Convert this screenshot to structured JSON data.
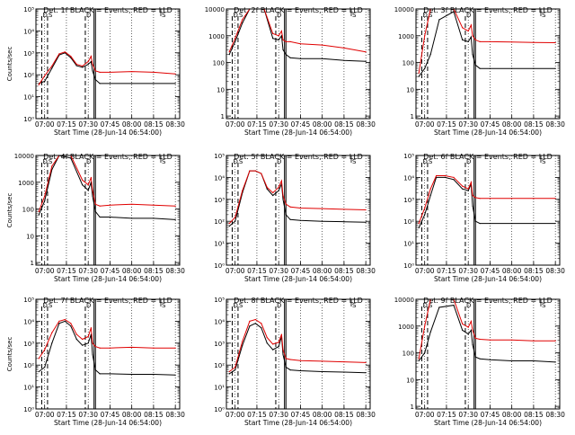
{
  "chart_data": [
    {
      "type": "line",
      "title": "Det. 1f BLACK = Events, RED = LLD",
      "xlabel": "Start Time (28-Jun-14 06:54:00)",
      "ylabel": "Counts/sec",
      "scale": "log",
      "ylim": [
        1,
        100000
      ],
      "yticks": [
        1,
        10,
        100,
        1000,
        10000,
        100000
      ],
      "ytick_labels": [
        "10⁰",
        "10¹",
        "10²",
        "10³",
        "10⁴",
        "10⁵"
      ],
      "xticks": [
        "07:00",
        "07:15",
        "07:30",
        "07:45",
        "08:00",
        "08:15",
        "08:30"
      ],
      "markers": [
        "D",
        "S",
        "D",
        "S"
      ],
      "series": [
        {
          "name": "Events",
          "color": "#000000",
          "x": [
            "06:56",
            "07:00",
            "07:05",
            "07:10",
            "07:14",
            "07:18",
            "07:22",
            "07:26",
            "07:30",
            "07:32",
            "07:33",
            "07:35",
            "07:38",
            "07:45",
            "08:00",
            "08:15",
            "08:30"
          ],
          "values": [
            40,
            50,
            200,
            800,
            1000,
            600,
            260,
            220,
            300,
            400,
            150,
            60,
            40,
            40,
            40,
            40,
            40
          ]
        },
        {
          "name": "LLD",
          "color": "#e00000",
          "x": [
            "06:56",
            "07:00",
            "07:05",
            "07:10",
            "07:14",
            "07:18",
            "07:22",
            "07:26",
            "07:30",
            "07:32",
            "07:33",
            "07:35",
            "07:38",
            "07:45",
            "08:00",
            "08:15",
            "08:30"
          ],
          "values": [
            35,
            90,
            250,
            900,
            1100,
            700,
            300,
            250,
            400,
            700,
            300,
            150,
            130,
            130,
            140,
            130,
            110
          ]
        }
      ]
    },
    {
      "type": "line",
      "title": "Det. 2f BLACK = Events, RED = LLD",
      "xlabel": "Start Time (28-Jun-14 06:54:00)",
      "ylabel": "",
      "scale": "log",
      "ylim": [
        0.8,
        10000
      ],
      "yticks": [
        1,
        10,
        100,
        1000,
        10000
      ],
      "ytick_labels": [
        "1",
        "10",
        "100",
        "1000",
        "10000"
      ],
      "xticks": [
        "07:00",
        "07:15",
        "07:30",
        "07:45",
        "08:00",
        "08:15",
        "08:30"
      ],
      "markers": [
        "D",
        "S",
        "D",
        "S"
      ],
      "series": [
        {
          "name": "Events",
          "color": "#000000",
          "x": [
            "06:56",
            "07:00",
            "07:05",
            "07:10",
            "07:20",
            "07:26",
            "07:30",
            "07:32",
            "07:33",
            "07:35",
            "07:38",
            "07:45",
            "08:00",
            "08:15",
            "08:30"
          ],
          "values": [
            200,
            600,
            3000,
            10000,
            10000,
            800,
            700,
            1000,
            300,
            200,
            150,
            140,
            140,
            120,
            110
          ]
        },
        {
          "name": "LLD",
          "color": "#e00000",
          "x": [
            "06:56",
            "07:00",
            "07:05",
            "07:10",
            "07:20",
            "07:26",
            "07:30",
            "07:32",
            "07:33",
            "07:35",
            "07:38",
            "07:45",
            "08:00",
            "08:15",
            "08:30"
          ],
          "values": [
            250,
            800,
            4000,
            10000,
            10000,
            1200,
            1000,
            1500,
            700,
            600,
            600,
            500,
            450,
            350,
            250
          ]
        }
      ]
    },
    {
      "type": "line",
      "title": "Det. 3f BLACK = Events, RED = LLD",
      "xlabel": "Start Time (28-Jun-14 06:54:00)",
      "ylabel": "",
      "scale": "log",
      "ylim": [
        0.8,
        10000
      ],
      "yticks": [
        1,
        10,
        100,
        1000,
        10000
      ],
      "ytick_labels": [
        "1",
        "10",
        "100",
        "1000",
        "10000"
      ],
      "xticks": [
        "07:00",
        "07:15",
        "07:30",
        "07:45",
        "08:00",
        "08:15",
        "08:30"
      ],
      "markers": [
        "D",
        "S",
        "D",
        "S"
      ],
      "series": [
        {
          "name": "Events",
          "color": "#000000",
          "x": [
            "06:56",
            "07:00",
            "07:04",
            "07:10",
            "07:20",
            "07:26",
            "07:30",
            "07:32",
            "07:33",
            "07:35",
            "07:38",
            "07:45",
            "08:00",
            "08:15",
            "08:30"
          ],
          "values": [
            30,
            60,
            200,
            4000,
            8000,
            700,
            600,
            900,
            200,
            80,
            60,
            60,
            60,
            60,
            60
          ]
        },
        {
          "name": "LLD",
          "color": "#e00000",
          "x": [
            "06:56",
            "07:00",
            "07:04",
            "07:10",
            "07:20",
            "07:26",
            "07:30",
            "07:32",
            "07:33",
            "07:35",
            "07:38",
            "07:45",
            "08:00",
            "08:15",
            "08:30"
          ],
          "values": [
            40,
            1000,
            10000,
            10000,
            10000,
            2000,
            1500,
            2500,
            1000,
            700,
            600,
            600,
            580,
            560,
            550
          ]
        }
      ]
    },
    {
      "type": "line",
      "title": "Det. 4f BLACK = Events, RED = LLD",
      "xlabel": "Start Time (28-Jun-14 06:54:00)",
      "ylabel": "Counts/sec",
      "scale": "log",
      "ylim": [
        0.8,
        10000
      ],
      "yticks": [
        1,
        10,
        100,
        1000,
        10000
      ],
      "ytick_labels": [
        "1",
        "10",
        "100",
        "1000",
        "10000"
      ],
      "xticks": [
        "07:00",
        "07:15",
        "07:30",
        "07:45",
        "08:00",
        "08:15",
        "08:30"
      ],
      "markers": [
        "D",
        "S",
        "D",
        "S"
      ],
      "series": [
        {
          "name": "Events",
          "color": "#000000",
          "x": [
            "06:56",
            "07:00",
            "07:05",
            "07:10",
            "07:18",
            "07:26",
            "07:30",
            "07:32",
            "07:33",
            "07:35",
            "07:38",
            "07:45",
            "08:00",
            "08:15",
            "08:30"
          ],
          "values": [
            60,
            200,
            3000,
            10000,
            8000,
            800,
            500,
            1000,
            300,
            80,
            50,
            50,
            45,
            45,
            40
          ]
        },
        {
          "name": "LLD",
          "color": "#e00000",
          "x": [
            "06:56",
            "07:00",
            "07:05",
            "07:10",
            "07:18",
            "07:26",
            "07:30",
            "07:32",
            "07:33",
            "07:35",
            "07:38",
            "07:45",
            "08:00",
            "08:15",
            "08:30"
          ],
          "values": [
            80,
            300,
            4000,
            10000,
            10000,
            1200,
            800,
            1500,
            500,
            150,
            130,
            140,
            150,
            140,
            130
          ]
        }
      ]
    },
    {
      "type": "line",
      "title": "Det. 5f BLACK = Events, RED = LLD",
      "xlabel": "Start Time (28-Jun-14 06:54:00)",
      "ylabel": "",
      "scale": "log",
      "ylim": [
        1,
        100000
      ],
      "yticks": [
        1,
        10,
        100,
        1000,
        10000,
        100000
      ],
      "ytick_labels": [
        "10⁰",
        "10¹",
        "10²",
        "10³",
        "10⁴",
        "10⁵"
      ],
      "xticks": [
        "07:00",
        "07:15",
        "07:30",
        "07:45",
        "08:00",
        "08:15",
        "08:30"
      ],
      "markers": [
        "D",
        "S",
        "D",
        "S"
      ],
      "series": [
        {
          "name": "Events",
          "color": "#000000",
          "x": [
            "06:56",
            "07:00",
            "07:05",
            "07:10",
            "07:14",
            "07:18",
            "07:22",
            "07:26",
            "07:30",
            "07:32",
            "07:33",
            "07:35",
            "07:38",
            "07:45",
            "08:00",
            "08:15",
            "08:30"
          ],
          "values": [
            60,
            100,
            2000,
            20000,
            20000,
            15000,
            3000,
            1500,
            2500,
            5000,
            1000,
            200,
            120,
            110,
            100,
            95,
            90
          ]
        },
        {
          "name": "LLD",
          "color": "#e00000",
          "x": [
            "06:56",
            "07:00",
            "07:05",
            "07:10",
            "07:14",
            "07:18",
            "07:22",
            "07:26",
            "07:30",
            "07:32",
            "07:33",
            "07:35",
            "07:38",
            "07:45",
            "08:00",
            "08:15",
            "08:30"
          ],
          "values": [
            80,
            150,
            2500,
            20000,
            20000,
            15000,
            3500,
            2000,
            3500,
            7000,
            1500,
            600,
            450,
            400,
            380,
            350,
            330
          ]
        }
      ]
    },
    {
      "type": "line",
      "title": "Det. 6f BLACK = Events, RED = LLD",
      "xlabel": "Start Time (28-Jun-14 06:54:00)",
      "ylabel": "",
      "scale": "log",
      "ylim": [
        1,
        100000
      ],
      "yticks": [
        1,
        10,
        100,
        1000,
        10000,
        100000
      ],
      "ytick_labels": [
        "10⁰",
        "10¹",
        "10²",
        "10³",
        "10⁴",
        "10⁵"
      ],
      "xticks": [
        "07:00",
        "07:15",
        "07:30",
        "07:45",
        "08:00",
        "08:15",
        "08:30"
      ],
      "markers": [
        "D",
        "S",
        "D",
        "S"
      ],
      "series": [
        {
          "name": "Events",
          "color": "#000000",
          "x": [
            "06:56",
            "07:00",
            "07:04",
            "07:08",
            "07:14",
            "07:20",
            "07:26",
            "07:30",
            "07:32",
            "07:33",
            "07:35",
            "07:38",
            "07:45",
            "08:00",
            "08:15",
            "08:30"
          ],
          "values": [
            50,
            200,
            1500,
            10000,
            10000,
            8000,
            3000,
            2500,
            5000,
            500,
            100,
            80,
            80,
            80,
            80,
            80
          ]
        },
        {
          "name": "LLD",
          "color": "#e00000",
          "x": [
            "06:56",
            "07:00",
            "07:04",
            "07:08",
            "07:14",
            "07:20",
            "07:26",
            "07:30",
            "07:32",
            "07:33",
            "07:35",
            "07:38",
            "07:45",
            "08:00",
            "08:15",
            "08:30"
          ],
          "values": [
            80,
            400,
            3000,
            12000,
            12000,
            10000,
            4000,
            3000,
            6000,
            1500,
            1200,
            1100,
            1100,
            1100,
            1100,
            1100
          ]
        }
      ]
    },
    {
      "type": "line",
      "title": "Det. 7f BLACK = Events, RED = LLD",
      "xlabel": "Start Time (28-Jun-14 06:54:00)",
      "ylabel": "Counts/sec",
      "scale": "log",
      "ylim": [
        1,
        100000
      ],
      "yticks": [
        1,
        10,
        100,
        1000,
        10000,
        100000
      ],
      "ytick_labels": [
        "10⁰",
        "10¹",
        "10²",
        "10³",
        "10⁴",
        "10⁵"
      ],
      "xticks": [
        "07:00",
        "07:15",
        "07:30",
        "07:45",
        "08:00",
        "08:15",
        "08:30"
      ],
      "markers": [
        "D",
        "S",
        "D",
        "S"
      ],
      "series": [
        {
          "name": "Events",
          "color": "#000000",
          "x": [
            "06:56",
            "07:00",
            "07:05",
            "07:10",
            "07:14",
            "07:18",
            "07:22",
            "07:26",
            "07:30",
            "07:32",
            "07:33",
            "07:35",
            "07:38",
            "07:45",
            "08:00",
            "08:15",
            "08:30"
          ],
          "values": [
            50,
            80,
            1000,
            8000,
            10000,
            6000,
            1500,
            800,
            1000,
            2500,
            300,
            60,
            40,
            40,
            38,
            38,
            35
          ]
        },
        {
          "name": "LLD",
          "color": "#e00000",
          "x": [
            "06:56",
            "07:00",
            "07:05",
            "07:10",
            "07:14",
            "07:18",
            "07:22",
            "07:26",
            "07:30",
            "07:32",
            "07:33",
            "07:35",
            "07:38",
            "07:45",
            "08:00",
            "08:15",
            "08:30"
          ],
          "values": [
            200,
            500,
            3000,
            10000,
            12000,
            8000,
            2500,
            1500,
            2000,
            5000,
            1000,
            700,
            600,
            600,
            650,
            600,
            600
          ]
        }
      ]
    },
    {
      "type": "line",
      "title": "Det. 8f BLACK = Events, RED = LLD",
      "xlabel": "Start Time (28-Jun-14 06:54:00)",
      "ylabel": "",
      "scale": "log",
      "ylim": [
        1,
        100000
      ],
      "yticks": [
        1,
        10,
        100,
        1000,
        10000,
        100000
      ],
      "ytick_labels": [
        "10⁰",
        "10¹",
        "10²",
        "10³",
        "10⁴",
        "10⁵"
      ],
      "xticks": [
        "07:00",
        "07:15",
        "07:30",
        "07:45",
        "08:00",
        "08:15",
        "08:30"
      ],
      "markers": [
        "D",
        "S",
        "D",
        "S"
      ],
      "series": [
        {
          "name": "Events",
          "color": "#000000",
          "x": [
            "06:56",
            "07:00",
            "07:05",
            "07:10",
            "07:14",
            "07:18",
            "07:22",
            "07:26",
            "07:30",
            "07:32",
            "07:33",
            "07:35",
            "07:38",
            "07:45",
            "08:00",
            "08:15",
            "08:30"
          ],
          "values": [
            40,
            60,
            800,
            6000,
            8000,
            5000,
            1000,
            500,
            700,
            2000,
            300,
            80,
            60,
            55,
            50,
            48,
            45
          ]
        },
        {
          "name": "LLD",
          "color": "#e00000",
          "x": [
            "06:56",
            "07:00",
            "07:05",
            "07:10",
            "07:14",
            "07:18",
            "07:22",
            "07:26",
            "07:30",
            "07:32",
            "07:33",
            "07:35",
            "07:38",
            "07:45",
            "08:00",
            "08:15",
            "08:30"
          ],
          "values": [
            50,
            80,
            1200,
            10000,
            12000,
            8000,
            1800,
            900,
            1100,
            2500,
            500,
            200,
            180,
            160,
            150,
            140,
            130
          ]
        }
      ]
    },
    {
      "type": "line",
      "title": "Det. 9f BLACK = Events, RED = LLD",
      "xlabel": "Start Time (28-Jun-14 06:54:00)",
      "ylabel": "",
      "scale": "log",
      "ylim": [
        0.8,
        10000
      ],
      "yticks": [
        1,
        10,
        100,
        1000,
        10000
      ],
      "ytick_labels": [
        "1",
        "10",
        "100",
        "1000",
        "10000"
      ],
      "xticks": [
        "07:00",
        "07:15",
        "07:30",
        "07:45",
        "08:00",
        "08:15",
        "08:30"
      ],
      "markers": [
        "D",
        "S",
        "D",
        "S"
      ],
      "series": [
        {
          "name": "Events",
          "color": "#000000",
          "x": [
            "06:56",
            "07:00",
            "07:04",
            "07:10",
            "07:20",
            "07:26",
            "07:30",
            "07:32",
            "07:33",
            "07:35",
            "07:38",
            "07:45",
            "08:00",
            "08:15",
            "08:30"
          ],
          "values": [
            50,
            100,
            600,
            5000,
            6000,
            700,
            500,
            700,
            200,
            70,
            60,
            55,
            50,
            50,
            45
          ]
        },
        {
          "name": "LLD",
          "color": "#e00000",
          "x": [
            "06:56",
            "07:00",
            "07:04",
            "07:10",
            "07:20",
            "07:26",
            "07:30",
            "07:32",
            "07:33",
            "07:35",
            "07:38",
            "07:45",
            "08:00",
            "08:15",
            "08:30"
          ],
          "values": [
            60,
            1000,
            10000,
            10000,
            10000,
            1200,
            900,
            1500,
            700,
            350,
            320,
            300,
            300,
            280,
            280
          ]
        }
      ]
    }
  ]
}
